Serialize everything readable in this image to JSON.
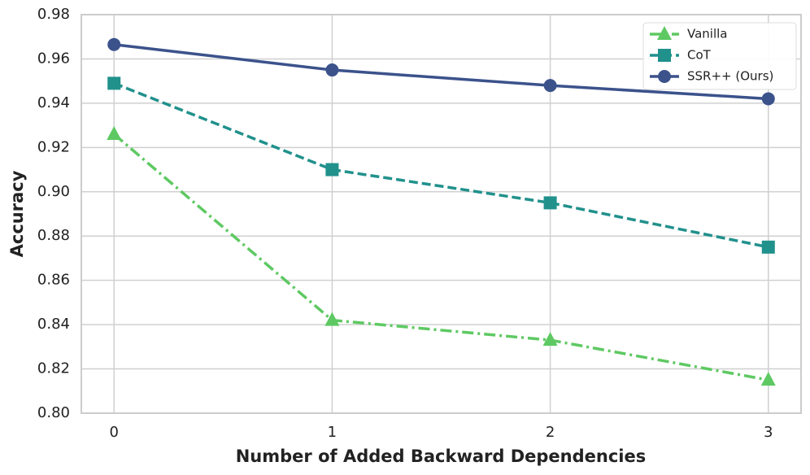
{
  "chart_data": {
    "type": "line",
    "x_label": "Number of Added Backward Dependencies",
    "y_label": "Accuracy",
    "x": [
      0,
      1,
      2,
      3
    ],
    "xlim": [
      -0.15,
      3.15
    ],
    "xticks": [
      0,
      1,
      2,
      3
    ],
    "ylim": [
      0.8,
      0.98
    ],
    "yticks": [
      {
        "value": 0.8,
        "label": "0.80"
      },
      {
        "value": 0.82,
        "label": "0.82"
      },
      {
        "value": 0.84,
        "label": "0.84"
      },
      {
        "value": 0.86,
        "label": "0.86"
      },
      {
        "value": 0.88,
        "label": "0.88"
      },
      {
        "value": 0.9,
        "label": "0.90"
      },
      {
        "value": 0.92,
        "label": "0.92"
      },
      {
        "value": 0.94,
        "label": "0.94"
      },
      {
        "value": 0.96,
        "label": "0.96"
      },
      {
        "value": 0.98,
        "label": "0.98"
      }
    ],
    "grid": true,
    "legend": "upper right",
    "series": [
      {
        "name": "Vanilla",
        "color": "#5ec962",
        "marker": "triangle",
        "dash": "dashdot",
        "values": [
          0.926,
          0.842,
          0.833,
          0.815
        ]
      },
      {
        "name": "CoT",
        "color": "#21918c",
        "marker": "square",
        "dash": "dashed",
        "values": [
          0.949,
          0.91,
          0.895,
          0.875
        ]
      },
      {
        "name": "SSR++ (Ours)",
        "color": "#3b528b",
        "marker": "circle",
        "dash": "solid",
        "values": [
          0.9665,
          0.955,
          0.948,
          0.942
        ]
      }
    ]
  }
}
